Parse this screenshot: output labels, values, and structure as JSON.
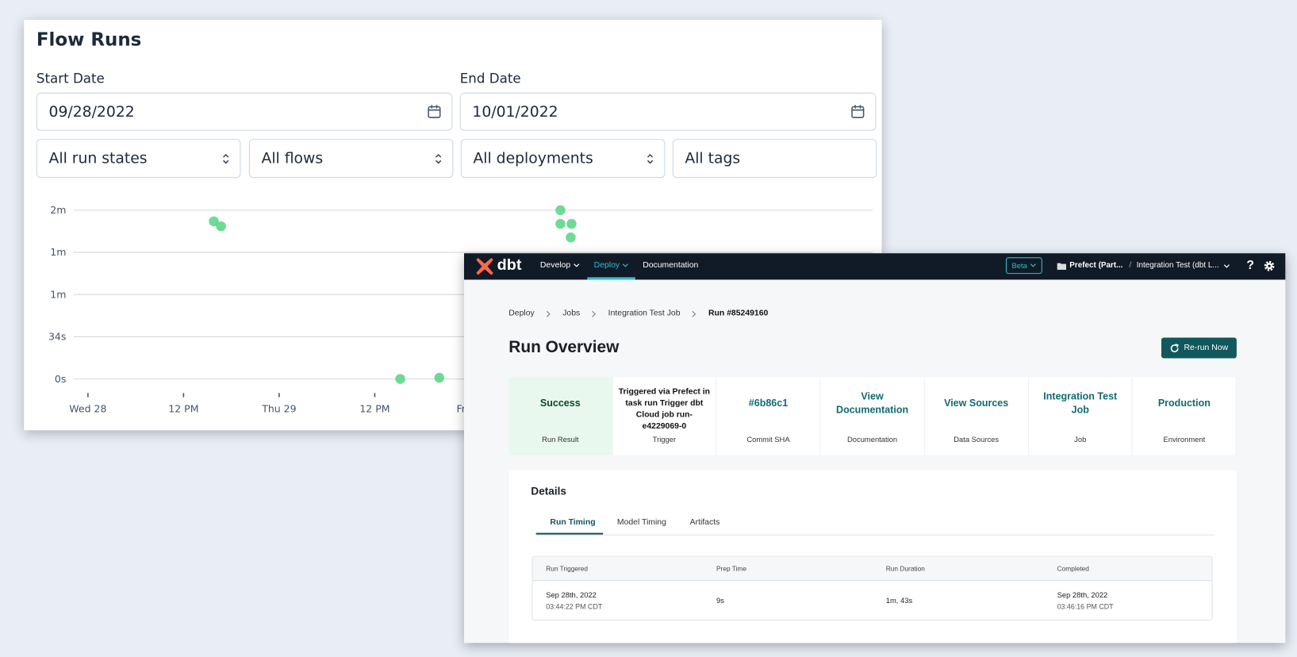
{
  "flow_runs": {
    "title": "Flow Runs",
    "start_date_label": "Start Date",
    "start_date": "09/28/2022",
    "end_date_label": "End Date",
    "end_date": "10/01/2022",
    "filters": [
      "All run states",
      "All flows",
      "All deployments",
      "All tags"
    ]
  },
  "chart_data": {
    "type": "scatter",
    "color": "#5fd68a",
    "grid": true,
    "x": [
      15.8,
      16.7,
      59.3,
      59.3,
      60.7,
      60.6,
      39.2,
      44.1
    ],
    "values": [
      127,
      123,
      136,
      125,
      125,
      114,
      0,
      1
    ],
    "xlim": [
      -1.8,
      98.5
    ],
    "xticks": [
      {
        "value": 0,
        "label": "Wed 28"
      },
      {
        "value": 12,
        "label": "12 PM"
      },
      {
        "value": 24,
        "label": "Thu 29"
      },
      {
        "value": 36,
        "label": "12 PM"
      },
      {
        "value": 48,
        "label": "Fri 30"
      }
    ],
    "ylim": [
      0,
      136
    ],
    "yticks": [
      {
        "value": 0,
        "label": "0s"
      },
      {
        "value": 34,
        "label": "34s"
      },
      {
        "value": 68,
        "label": "1m"
      },
      {
        "value": 102,
        "label": "1m"
      },
      {
        "value": 136,
        "label": "2m"
      }
    ]
  },
  "dbt": {
    "nav": {
      "logo": "dbt",
      "items": [
        "Develop",
        "Deploy",
        "Documentation"
      ],
      "beta": "Beta",
      "project": "Prefect (Part...",
      "separator": "/",
      "environment": "Integration Test (dbt L...",
      "help": "?"
    },
    "breadcrumb": [
      "Deploy",
      "Jobs",
      "Integration Test Job",
      "Run #85249160"
    ],
    "title": "Run Overview",
    "button": "Re-run Now",
    "summary": [
      {
        "value": "Success",
        "label": "Run Result"
      },
      {
        "value": "Triggered via Prefect in task run Trigger dbt Cloud job run-e4229069-0",
        "label": "Trigger"
      },
      {
        "value": "#6b86c1",
        "label": "Commit SHA"
      },
      {
        "value": "View Documentation",
        "label": "Documentation"
      },
      {
        "value": "View Sources",
        "label": "Data Sources"
      },
      {
        "value": "Integration Test Job",
        "label": "Job"
      },
      {
        "value": "Production",
        "label": "Environment"
      }
    ],
    "details": {
      "title": "Details",
      "tabs": [
        "Run Timing",
        "Model Timing",
        "Artifacts"
      ],
      "table": {
        "headers": [
          "Run Triggered",
          "Prep Time",
          "Run Duration",
          "Completed"
        ],
        "rows": [
          [
            [
              "Sep 28th, 2022",
              "03:44:22 PM CDT"
            ],
            [
              "9s"
            ],
            [
              "1m, 43s"
            ],
            [
              "Sep 28th, 2022",
              "03:46:16 PM CDT"
            ]
          ]
        ]
      }
    }
  }
}
